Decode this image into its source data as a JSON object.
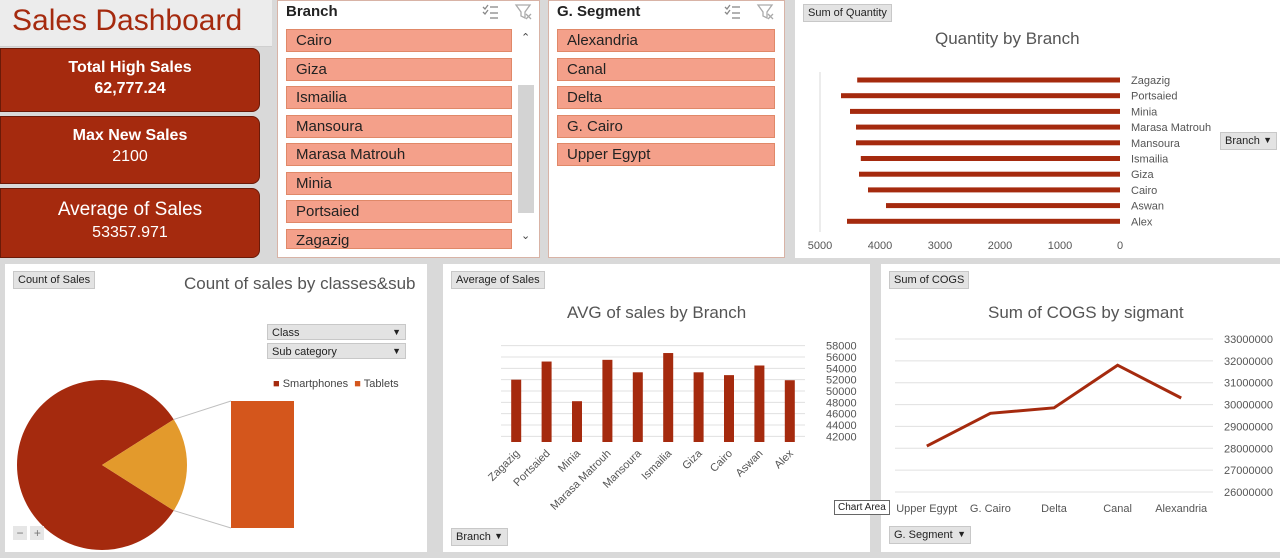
{
  "title": "Sales Dashboard",
  "kpis": [
    {
      "label": "Total High Sales",
      "value": "62,777.24"
    },
    {
      "label": "Max New Sales",
      "value": "2100"
    },
    {
      "label": "Average of Sales",
      "value": "53357.971"
    }
  ],
  "branch_slicer": {
    "header": "Branch",
    "items": [
      "Cairo",
      "Giza",
      "Ismailia",
      "Mansoura",
      "Marasa Matrouh",
      "Minia",
      "Portsaied",
      "Zagazig"
    ]
  },
  "segment_slicer": {
    "header": "G. Segment",
    "items": [
      "Alexandria",
      "Canal",
      "Delta",
      "G. Cairo",
      "Upper Egypt"
    ]
  },
  "quantity_panel": {
    "field_button": "Sum of Quantity",
    "dropdown": "Branch"
  },
  "count_panel": {
    "field_button": "Count of Sales",
    "dropdown_class": "Class",
    "dropdown_subcategory": "Sub category",
    "zoom_minus": "−",
    "zoom_plus": "+"
  },
  "avg_panel": {
    "field_button": "Average of Sales",
    "dropdown": "Branch"
  },
  "cogs_panel": {
    "field_button": "Sum of COGS",
    "dropdown": "G. Segment",
    "tooltip": "Chart Area"
  },
  "colors": {
    "accent": "#a52a0e",
    "slicer_item": "#f4a08a",
    "pie_secondary": "#e39a2c",
    "tablets": "#d4561c"
  },
  "chart_data": [
    {
      "type": "bar",
      "orientation": "horizontal",
      "title": "Quantity by Branch",
      "categories": [
        "Zagazig",
        "Portsaied",
        "Minia",
        "Marasa Matrouh",
        "Mansoura",
        "Ismailia",
        "Giza",
        "Cairo",
        "Aswan",
        "Alex"
      ],
      "values": [
        4380,
        4650,
        4500,
        4400,
        4400,
        4320,
        4350,
        4200,
        3900,
        4550
      ],
      "xlim": [
        5000,
        0
      ],
      "xticks": [
        "5000",
        "4000",
        "3000",
        "2000",
        "1000",
        "0"
      ],
      "grid": false
    },
    {
      "type": "pie",
      "title": "Count of sales by classes&sub",
      "legend": [
        "Smartphones",
        "Tablets"
      ],
      "slices": [
        {
          "name": "Smartphones",
          "value": 82
        },
        {
          "name": "Tablets",
          "value": 18
        }
      ],
      "legend_position": "top-right"
    },
    {
      "type": "bar",
      "title": "AVG of sales by Branch",
      "categories": [
        "Zagazig",
        "Portsaied",
        "Minia",
        "Marasa Matrouh",
        "Mansoura",
        "Ismailia",
        "Giza",
        "Cairo",
        "Aswan",
        "Alex"
      ],
      "values": [
        52000,
        55200,
        48200,
        55500,
        53300,
        56700,
        53300,
        52800,
        54500,
        51900
      ],
      "ylim": [
        41000,
        59000
      ],
      "yticks": [
        "58000",
        "56000",
        "54000",
        "52000",
        "50000",
        "48000",
        "46000",
        "44000",
        "42000"
      ],
      "grid": true
    },
    {
      "type": "line",
      "title": "Sum of COGS by sigmant",
      "categories": [
        "Upper Egypt",
        "G. Cairo",
        "Delta",
        "Canal",
        "Alexandria"
      ],
      "values": [
        28100000,
        29600000,
        29850000,
        31800000,
        30300000
      ],
      "ylim": [
        26000000,
        33000000
      ],
      "yticks": [
        "33000000",
        "32000000",
        "31000000",
        "30000000",
        "29000000",
        "28000000",
        "27000000",
        "26000000"
      ],
      "grid": true
    }
  ]
}
